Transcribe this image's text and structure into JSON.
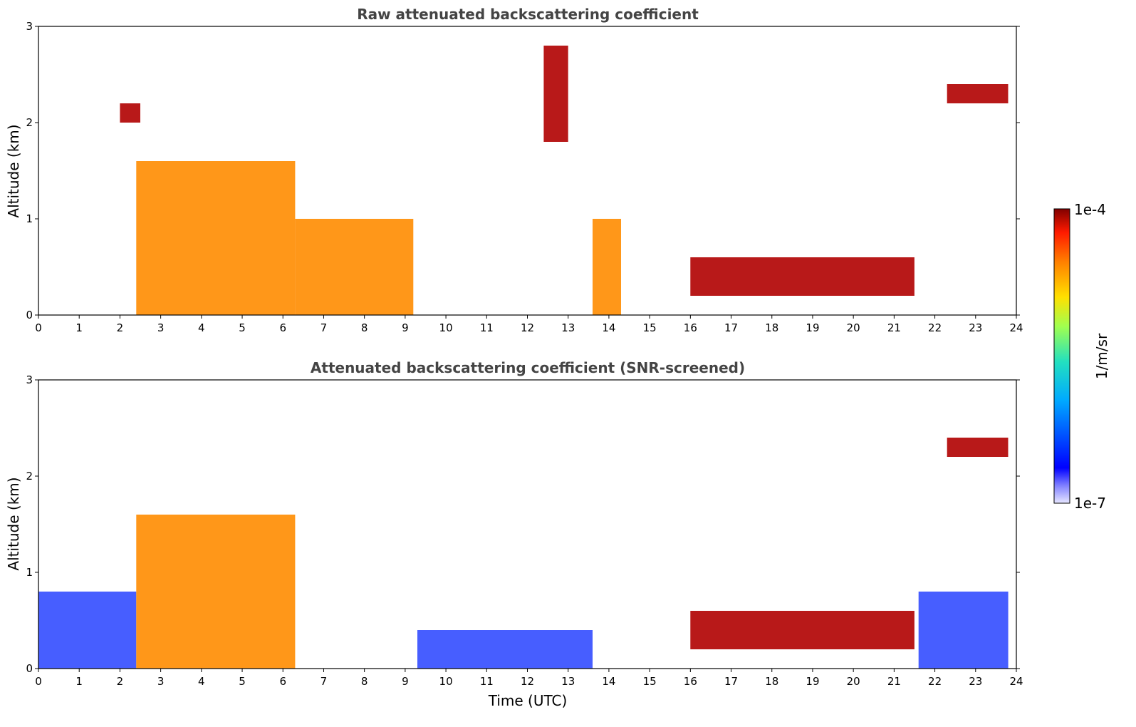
{
  "chart_data": [
    {
      "type": "heatmap",
      "title": "Raw attenuated backscattering coefficient",
      "ylabel": "Altitude (km)",
      "xlabel": "",
      "xlim": [
        0,
        24
      ],
      "ylim": [
        0,
        3
      ],
      "xticks": [
        "0",
        "1",
        "2",
        "3",
        "4",
        "5",
        "6",
        "7",
        "8",
        "9",
        "10",
        "11",
        "12",
        "13",
        "14",
        "15",
        "16",
        "17",
        "18",
        "19",
        "20",
        "21",
        "22",
        "23",
        "24"
      ],
      "yticks": [
        "0",
        "1",
        "2",
        "3"
      ],
      "colorscale": "jet",
      "features": [
        {
          "time": [
            2.4,
            6.3
          ],
          "alt": [
            0.0,
            1.6
          ],
          "level": "high"
        },
        {
          "time": [
            6.3,
            9.2
          ],
          "alt": [
            0.0,
            1.0
          ],
          "level": "high",
          "note": "descending layer"
        },
        {
          "time": [
            2.0,
            2.5
          ],
          "alt": [
            2.0,
            2.2
          ],
          "level": "max"
        },
        {
          "time": [
            12.4,
            13.0
          ],
          "alt": [
            1.8,
            2.8
          ],
          "level": "max"
        },
        {
          "time": [
            13.6,
            14.3
          ],
          "alt": [
            0.0,
            1.0
          ],
          "level": "high"
        },
        {
          "time": [
            16.0,
            21.5
          ],
          "alt": [
            0.2,
            0.6
          ],
          "level": "max"
        },
        {
          "time": [
            22.3,
            23.8
          ],
          "alt": [
            2.2,
            2.4
          ],
          "level": "max"
        }
      ]
    },
    {
      "type": "heatmap",
      "title": "Attenuated backscattering coefficient (SNR-screened)",
      "ylabel": "Altitude (km)",
      "xlabel": "Time (UTC)",
      "xlim": [
        0,
        24
      ],
      "ylim": [
        0,
        3
      ],
      "xticks": [
        "0",
        "1",
        "2",
        "3",
        "4",
        "5",
        "6",
        "7",
        "8",
        "9",
        "10",
        "11",
        "12",
        "13",
        "14",
        "15",
        "16",
        "17",
        "18",
        "19",
        "20",
        "21",
        "22",
        "23",
        "24"
      ],
      "yticks": [
        "0",
        "1",
        "2",
        "3"
      ],
      "colorscale": "jet",
      "features": [
        {
          "time": [
            0.0,
            2.4
          ],
          "alt": [
            0.0,
            0.8
          ],
          "level": "low"
        },
        {
          "time": [
            2.4,
            6.3
          ],
          "alt": [
            0.0,
            1.6
          ],
          "level": "high"
        },
        {
          "time": [
            9.3,
            13.6
          ],
          "alt": [
            0.0,
            0.4
          ],
          "level": "low"
        },
        {
          "time": [
            16.0,
            21.5
          ],
          "alt": [
            0.2,
            0.6
          ],
          "level": "max"
        },
        {
          "time": [
            21.6,
            23.8
          ],
          "alt": [
            0.0,
            0.8
          ],
          "level": "low"
        },
        {
          "time": [
            22.3,
            23.8
          ],
          "alt": [
            2.2,
            2.4
          ],
          "level": "max"
        }
      ]
    }
  ],
  "colorbar": {
    "label": "1/m/sr",
    "max_label": "1e-4",
    "min_label": "1e-7",
    "min": 1e-07,
    "max": 0.0001,
    "scale": "log"
  }
}
